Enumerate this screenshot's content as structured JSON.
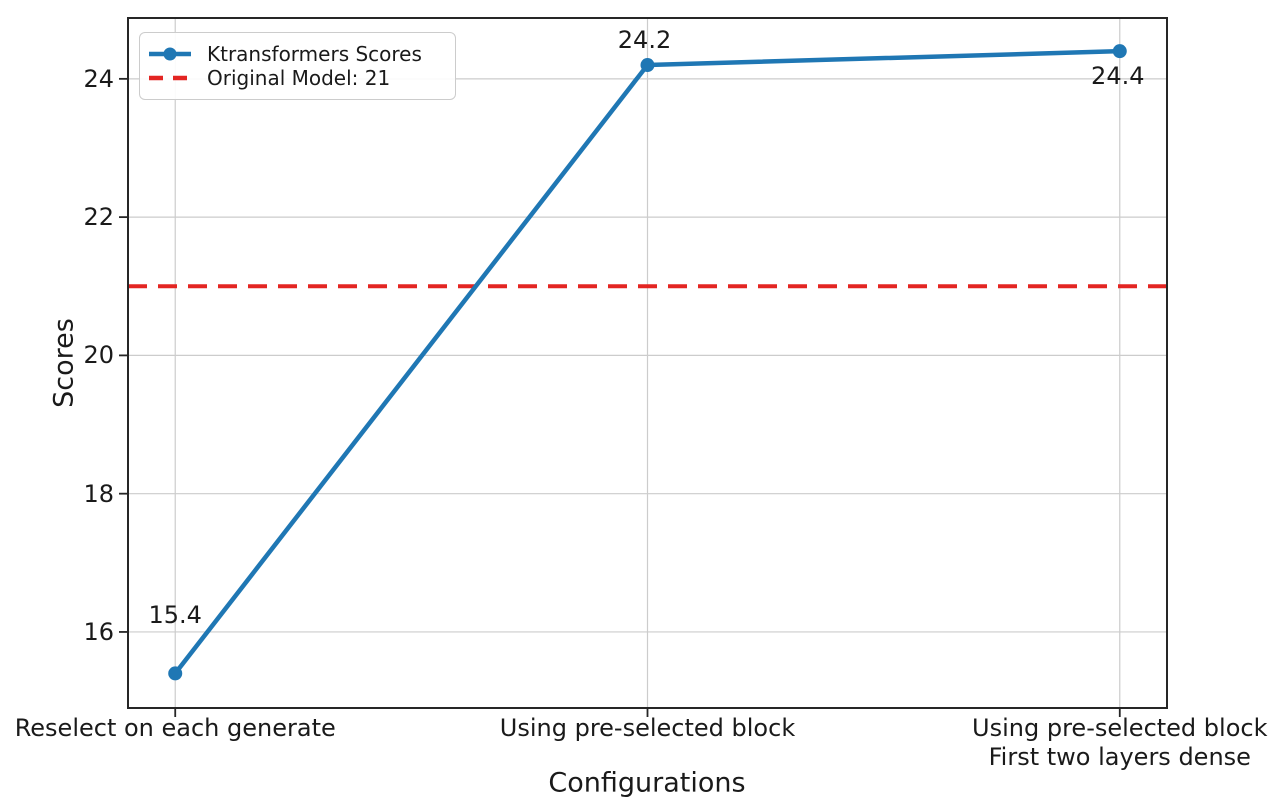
{
  "chart_data": {
    "type": "line",
    "title": "",
    "xlabel": "Configurations",
    "ylabel": "Scores",
    "categories": [
      "Reselect on each generate",
      "Using pre-selected block",
      "Using pre-selected block\nFirst two layers dense"
    ],
    "series": [
      {
        "name": "Ktransformers Scores",
        "values": [
          15.4,
          24.2,
          24.4
        ],
        "color": "#1f77b4",
        "marker": "circle",
        "line_style": "solid"
      }
    ],
    "reference_line": {
      "label": "Original Model: 21",
      "value": 21,
      "color": "#e32522",
      "line_style": "dashed"
    },
    "annotations": [
      {
        "text": "15.4",
        "placement": "above-far"
      },
      {
        "text": "24.2",
        "placement": "above"
      },
      {
        "text": "24.4",
        "placement": "below"
      }
    ],
    "yticks": [
      16,
      18,
      20,
      22,
      24
    ],
    "ylim": [
      14.9,
      24.88
    ],
    "grid": true,
    "grid_color": "#cccccc",
    "legend_position": "upper-left",
    "text_color": "#1a1a1a"
  }
}
